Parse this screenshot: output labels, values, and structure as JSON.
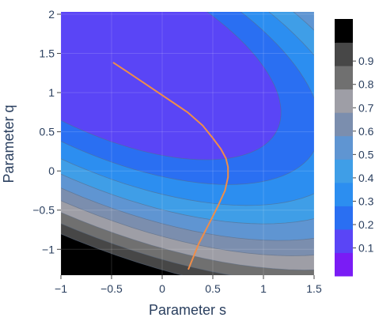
{
  "chart_data": {
    "type": "contour",
    "xlabel": "Parameter s",
    "ylabel": "Parameter q",
    "xlim": [
      -1,
      1.5
    ],
    "ylim": [
      -1.33,
      2.03
    ],
    "x_ticks": [
      -1,
      -0.5,
      0,
      0.5,
      1,
      1.5
    ],
    "x_tick_labels": [
      "−1",
      "−0.5",
      "0",
      "0.5",
      "1",
      "1.5"
    ],
    "y_ticks": [
      -1,
      -0.5,
      0,
      0.5,
      1,
      1.5,
      2
    ],
    "y_tick_labels": [
      "−1",
      "−0.5",
      "0",
      "0.5",
      "1",
      "1.5",
      "2"
    ],
    "grid": true,
    "contour_field": {
      "center": [
        -0.55,
        1.55
      ],
      "scale": 0.1
    },
    "contour_levels": [
      0.1,
      0.2,
      0.3,
      0.4,
      0.5,
      0.6,
      0.7,
      0.8,
      0.9
    ],
    "colorbar": {
      "ticks": [
        0.1,
        0.2,
        0.3,
        0.4,
        0.5,
        0.6,
        0.7,
        0.8,
        0.9
      ],
      "tick_labels": [
        "0.1",
        "0.2",
        "0.3",
        "0.4",
        "0.5",
        "0.6",
        "0.7",
        "0.8",
        "0.9"
      ],
      "band_colors": [
        "#7a1cf5",
        "#5a45f6",
        "#2a6ff2",
        "#2c8ef0",
        "#3f9ee7",
        "#5f95d2",
        "#7b8eae",
        "#9e9ea6",
        "#707070",
        "#474747",
        "#000000"
      ]
    },
    "path": {
      "color": "#ef8d49",
      "points": [
        [
          -0.48,
          1.38
        ],
        [
          -0.35,
          1.27
        ],
        [
          -0.2,
          1.14
        ],
        [
          -0.05,
          1.01
        ],
        [
          0.1,
          0.88
        ],
        [
          0.25,
          0.75
        ],
        [
          0.4,
          0.58
        ],
        [
          0.5,
          0.42
        ],
        [
          0.58,
          0.28
        ],
        [
          0.63,
          0.16
        ],
        [
          0.65,
          0.05
        ],
        [
          0.65,
          -0.08
        ],
        [
          0.62,
          -0.25
        ],
        [
          0.55,
          -0.45
        ],
        [
          0.46,
          -0.68
        ],
        [
          0.36,
          -0.93
        ],
        [
          0.26,
          -1.25
        ]
      ]
    }
  }
}
